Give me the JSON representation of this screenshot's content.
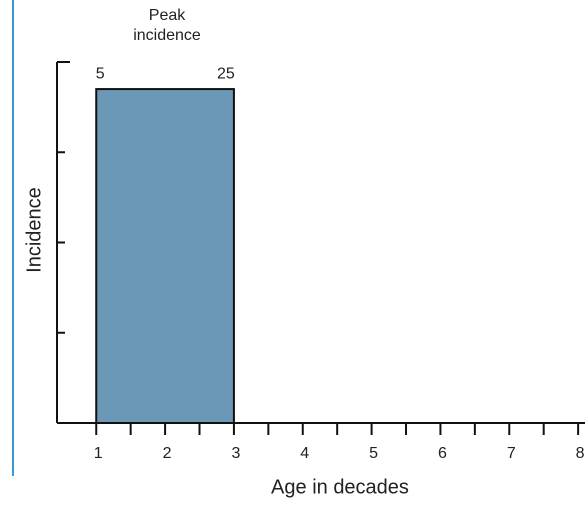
{
  "chart_data": {
    "type": "histogram",
    "annotation": "Peak incidence",
    "xlabel": "Age in decades",
    "ylabel": "Incidence",
    "bins": [
      1,
      3
    ],
    "values": [
      3.7
    ],
    "color": "#6b98b6",
    "edge_labels": [
      "5",
      "25"
    ],
    "xlim": [
      0.43,
      8.1
    ],
    "xticks": [
      1,
      2,
      3,
      4,
      5,
      6,
      7,
      8
    ],
    "minor_xticks": [
      1.5,
      2.5,
      3.5,
      4.5,
      5.5,
      6.5,
      7.5
    ],
    "ylim": [
      0,
      4
    ],
    "yticks": [
      1,
      2,
      3,
      4
    ]
  }
}
